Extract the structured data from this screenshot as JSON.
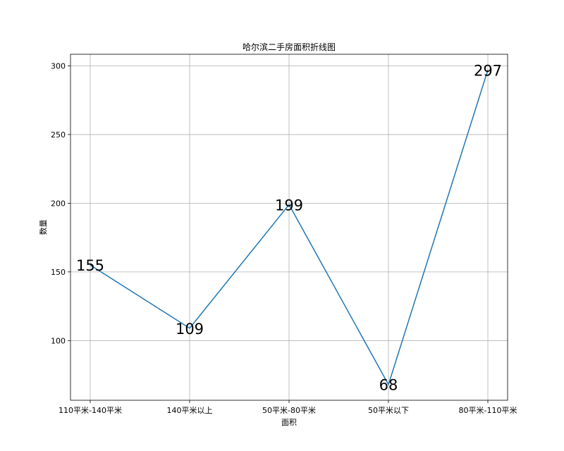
{
  "chart_data": {
    "type": "line",
    "title": "哈尔滨二手房面积折线图",
    "xlabel": "面积",
    "ylabel": "数量",
    "categories": [
      "110平米-140平米",
      "140平米以上",
      "50平米-80平米",
      "50平米以下",
      "80平米-110平米"
    ],
    "values": [
      155,
      109,
      199,
      68,
      297
    ],
    "data_labels": [
      "155",
      "109",
      "199",
      "68",
      "297"
    ],
    "ylim": [
      56.55,
      308.45
    ],
    "yticks": [
      100,
      150,
      200,
      250,
      300
    ],
    "ytick_labels": [
      "100",
      "150",
      "200",
      "250",
      "300"
    ],
    "grid": true,
    "line_color": "#1f77b4"
  }
}
